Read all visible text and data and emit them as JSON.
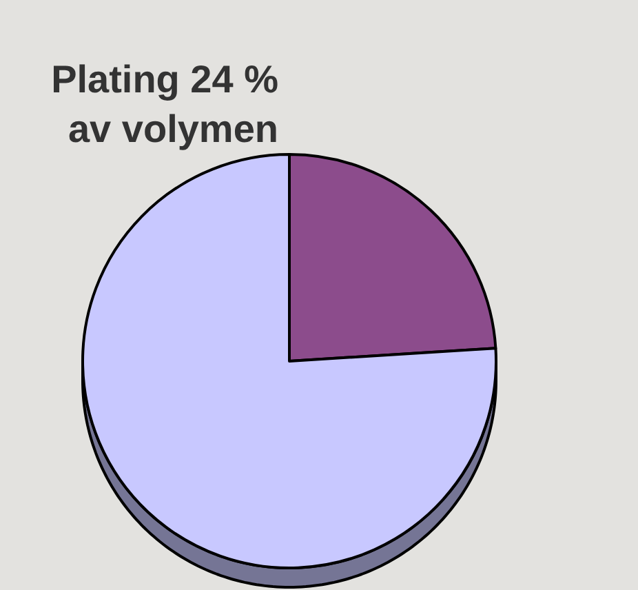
{
  "chart_data": {
    "type": "pie",
    "categories": [
      "Plating 24 % av volymen",
      null
    ],
    "values": [
      24,
      76
    ],
    "colors": [
      "#8c4c8c",
      "#c8c8ff"
    ]
  }
}
